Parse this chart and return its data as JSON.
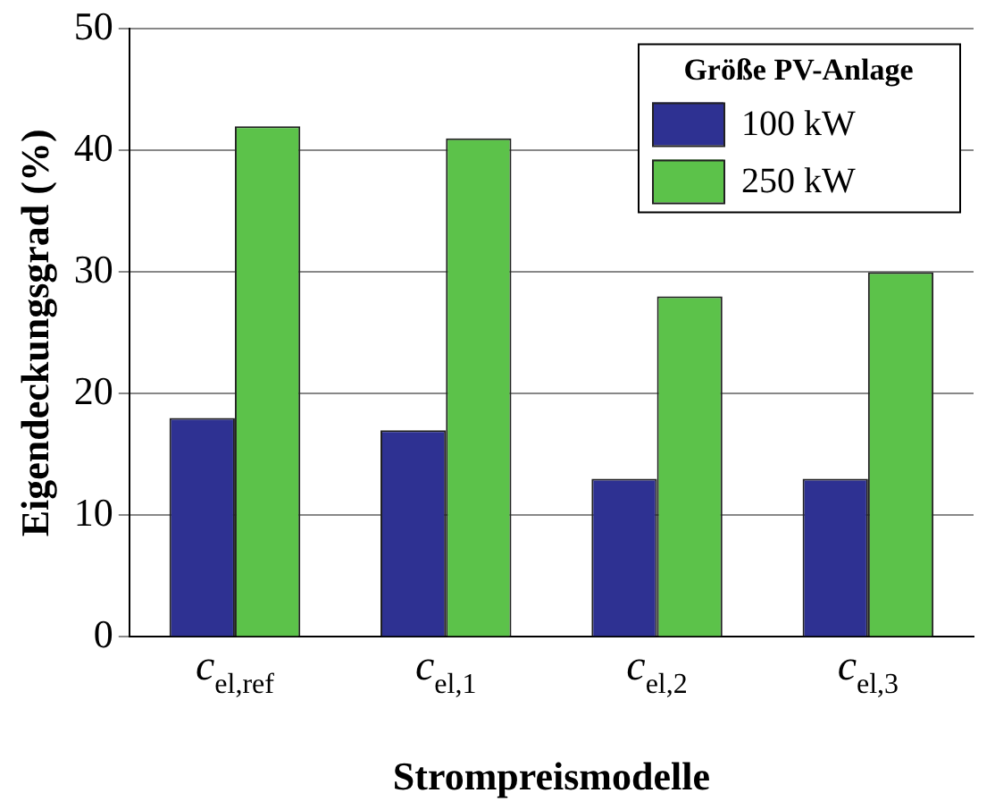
{
  "chart_data": {
    "type": "bar",
    "xlabel": "Strompreismodelle",
    "ylabel": "Eigendeckungsgrad (%)",
    "legend_title": "Größe PV-Anlage",
    "categories": [
      "c$_{el,ref}$",
      "c$_{el,1}$",
      "c$_{el,2}$",
      "c$_{el,3}$"
    ],
    "series": [
      {
        "name": "100 kW",
        "color": "#2e3192",
        "values": [
          18,
          17,
          13,
          13
        ]
      },
      {
        "name": "250 kW",
        "color": "#5cc24a",
        "values": [
          42,
          41,
          28,
          30
        ]
      }
    ],
    "ylim": [
      0,
      50
    ],
    "yticks": [
      0,
      10,
      20,
      30,
      40,
      50
    ],
    "grid": "y",
    "legend": "top right"
  }
}
